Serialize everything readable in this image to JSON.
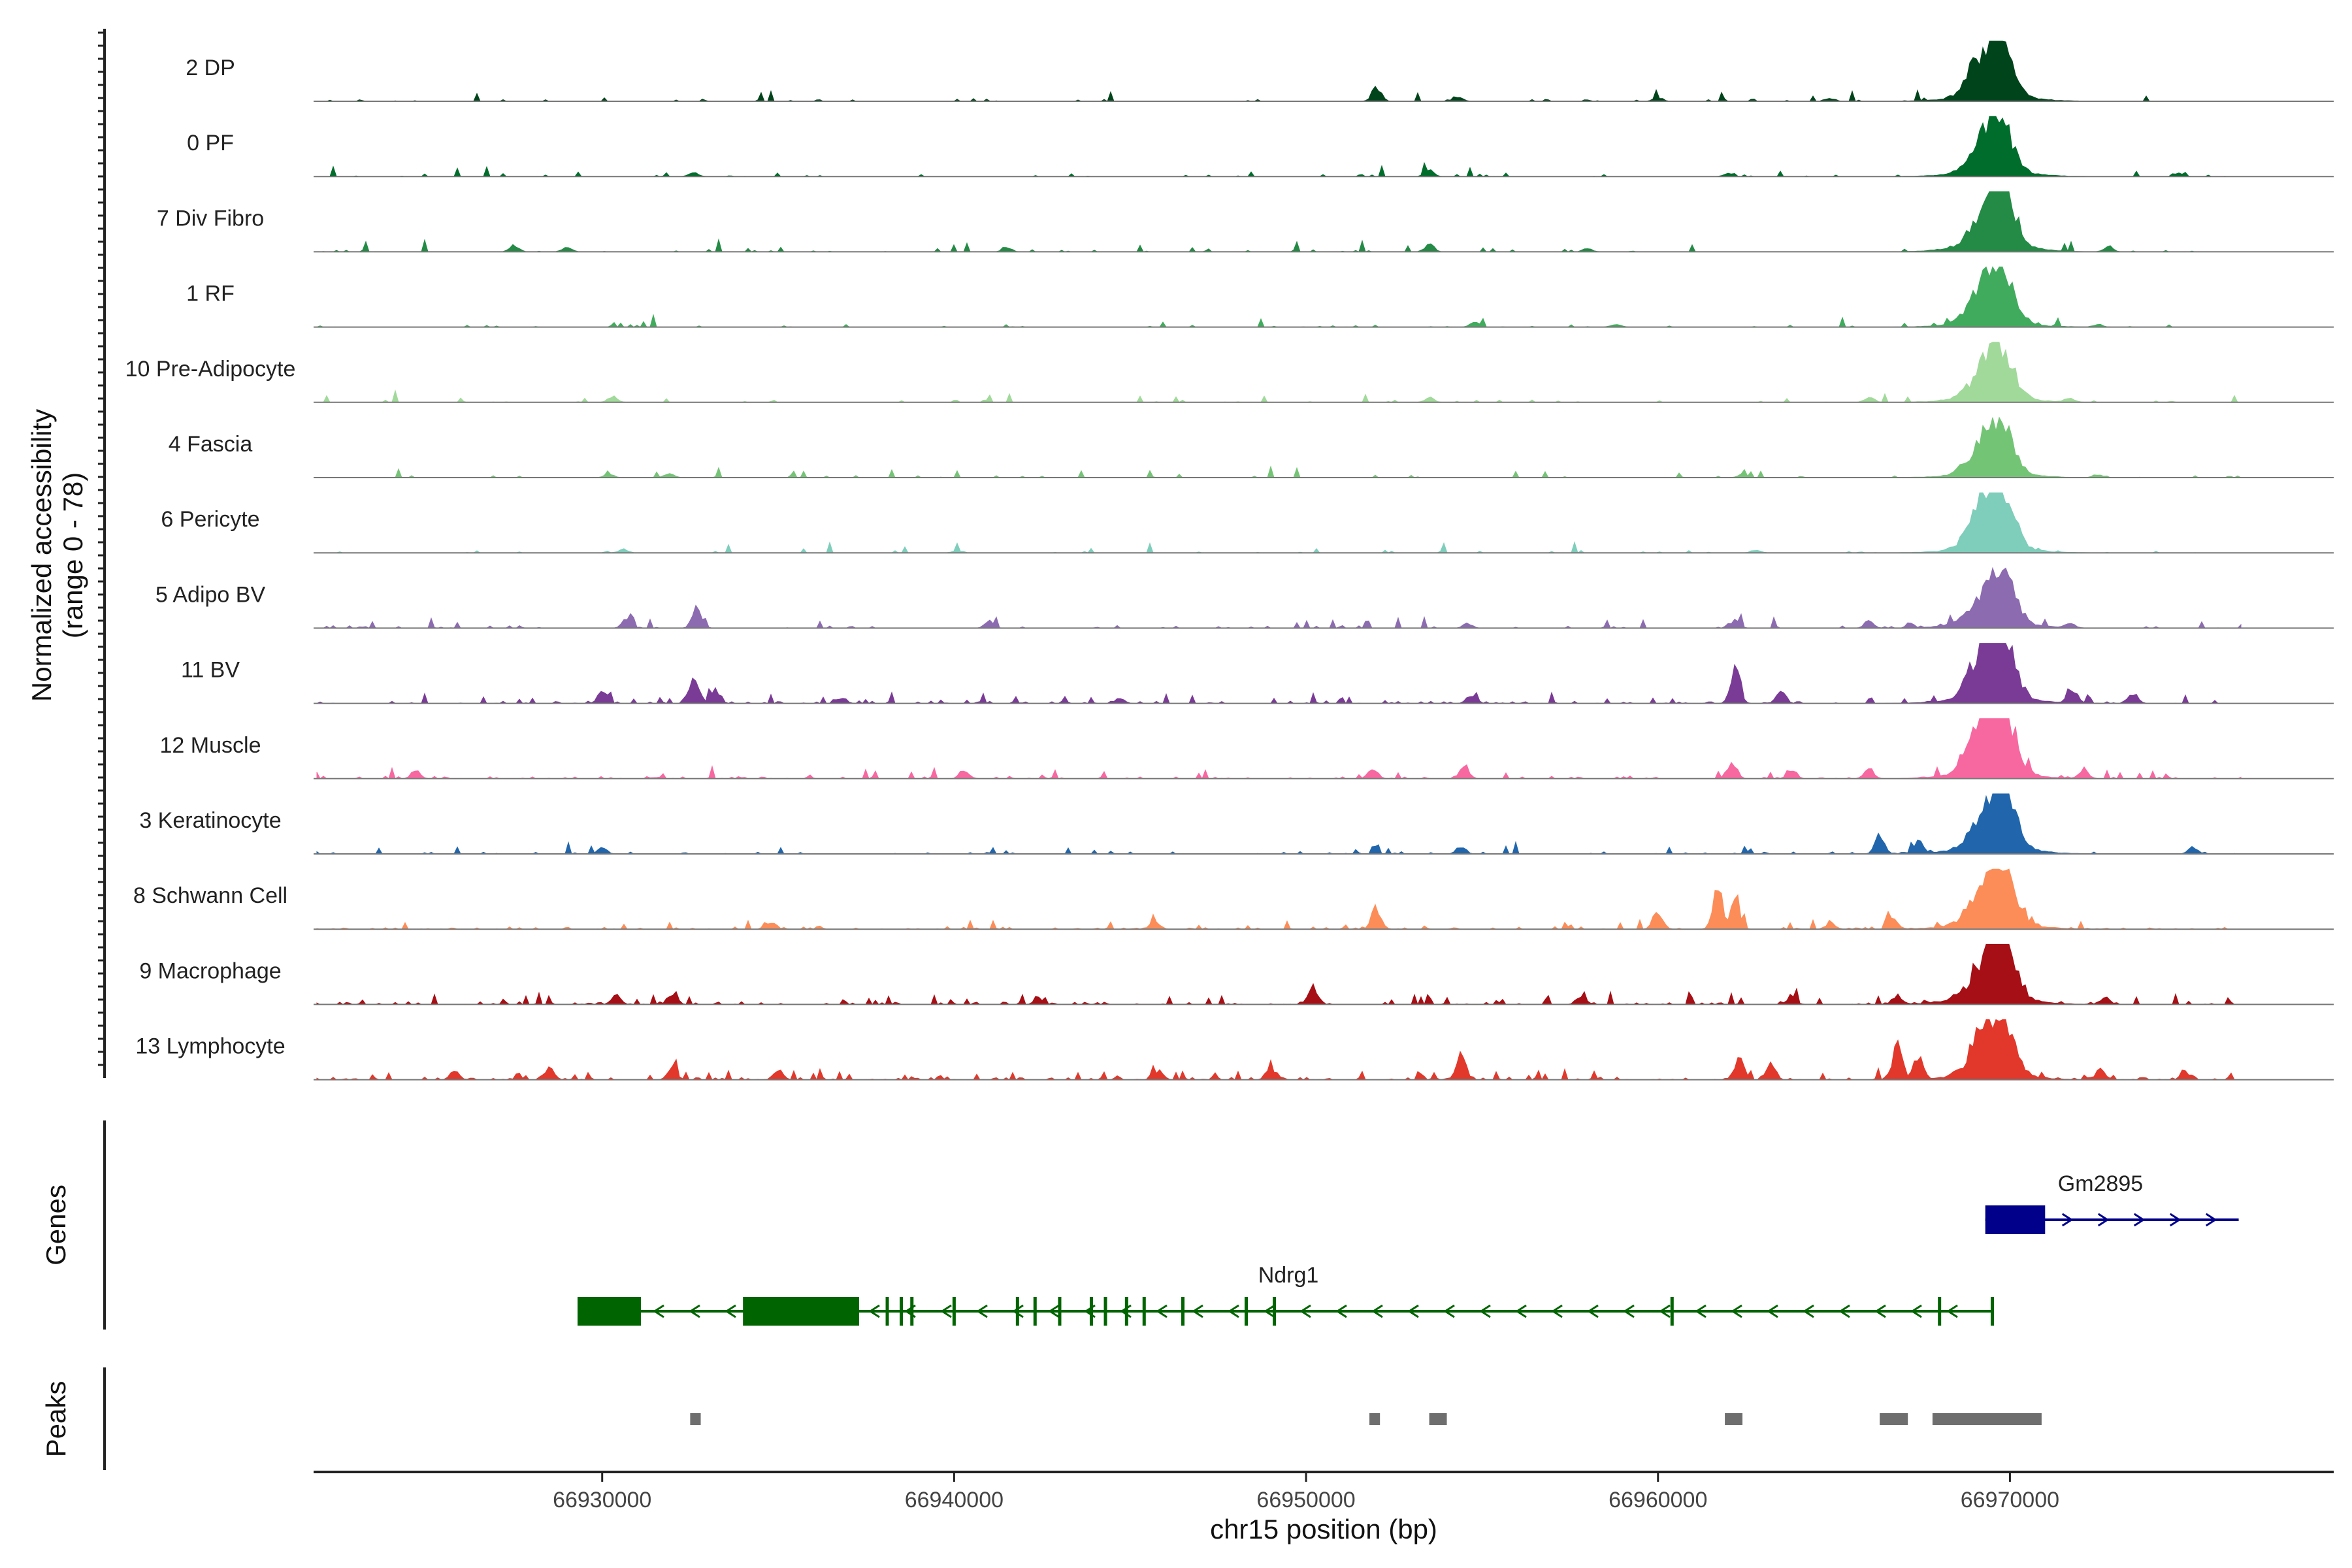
{
  "chart_data": {
    "type": "area",
    "title": "",
    "xlabel": "chr15 position (bp)",
    "ylabel": [
      "Normalized accessibility",
      "(range 0 - 78)"
    ],
    "ylim": [
      0,
      78
    ],
    "xlim": [
      66921800,
      66979200
    ],
    "x_ticks": [
      66930000,
      66940000,
      66950000,
      66960000,
      66970000
    ],
    "x_tick_labels": [
      "66930000",
      "66940000",
      "66950000",
      "66960000",
      "66970000"
    ],
    "panel_labels": {
      "genes": "Genes",
      "peaks": "Peaks"
    },
    "peak_positions": [
      66969300,
      66969800
    ],
    "tracks": [
      {
        "name": "2 DP",
        "color": "#00441b",
        "peak_heights": [
          55,
          43
        ],
        "minor_peaks": [
          [
            66952000,
            18
          ],
          [
            66954300,
            6
          ],
          [
            66960000,
            5
          ],
          [
            66964900,
            4
          ]
        ],
        "noise": 0.03
      },
      {
        "name": "0 PF",
        "color": "#006d2c",
        "peak_heights": [
          48,
          45
        ],
        "minor_peaks": [
          [
            66932600,
            5
          ],
          [
            66953500,
            8
          ],
          [
            66962000,
            4
          ],
          [
            66974800,
            4
          ]
        ],
        "noise": 0.03
      },
      {
        "name": "7 Div Fibro",
        "color": "#238b45",
        "peak_heights": [
          38,
          70
        ],
        "minor_peaks": [
          [
            66927500,
            8
          ],
          [
            66929000,
            6
          ],
          [
            66941500,
            5
          ],
          [
            66953500,
            9
          ],
          [
            66958000,
            4
          ],
          [
            66972800,
            7
          ]
        ],
        "noise": 0.05
      },
      {
        "name": "1 RF",
        "color": "#41ab5d",
        "peak_heights": [
          48,
          50
        ],
        "minor_peaks": [
          [
            66954800,
            6
          ],
          [
            66958800,
            4
          ],
          [
            66972500,
            3
          ]
        ],
        "noise": 0.03
      },
      {
        "name": "10 Pre-Adipocyte",
        "color": "#a1d99b",
        "peak_heights": [
          35,
          50
        ],
        "minor_peaks": [
          [
            66930300,
            8
          ],
          [
            66953500,
            6
          ],
          [
            66966000,
            7
          ],
          [
            66971700,
            5
          ]
        ],
        "noise": 0.04
      },
      {
        "name": "4 Fascia",
        "color": "#74c476",
        "peak_heights": [
          42,
          45
        ],
        "minor_peaks": [
          [
            66930200,
            5
          ],
          [
            66931900,
            6
          ],
          [
            66962400,
            4
          ],
          [
            66972500,
            4
          ]
        ],
        "noise": 0.03
      },
      {
        "name": "6 Pericyte",
        "color": "#7fcdbb",
        "peak_heights": [
          58,
          55
        ],
        "minor_peaks": [
          [
            66930600,
            5
          ],
          [
            66940100,
            3
          ],
          [
            66962800,
            4
          ]
        ],
        "noise": 0.03
      },
      {
        "name": "5 Adipo BV",
        "color": "#8c6bb1",
        "peak_heights": [
          30,
          65
        ],
        "minor_peaks": [
          [
            66930700,
            12
          ],
          [
            66932700,
            28
          ],
          [
            66941000,
            8
          ],
          [
            66954600,
            6
          ],
          [
            66962200,
            10
          ],
          [
            66966000,
            9
          ],
          [
            66971700,
            6
          ]
        ],
        "noise": 0.06
      },
      {
        "name": "11 BV",
        "color": "#7a3b96",
        "peak_heights": [
          60,
          65
        ],
        "minor_peaks": [
          [
            66930000,
            15
          ],
          [
            66932600,
            35
          ],
          [
            66933200,
            20
          ],
          [
            66936800,
            8
          ],
          [
            66944700,
            7
          ],
          [
            66954700,
            12
          ],
          [
            66962200,
            45
          ],
          [
            66963500,
            15
          ],
          [
            66971800,
            18
          ],
          [
            66973500,
            12
          ]
        ],
        "noise": 0.09
      },
      {
        "name": "12 Muscle",
        "color": "#f768a1",
        "peak_heights": [
          65,
          68
        ],
        "minor_peaks": [
          [
            66924700,
            10
          ],
          [
            66940300,
            12
          ],
          [
            66951900,
            15
          ],
          [
            66954500,
            17
          ],
          [
            66962100,
            22
          ],
          [
            66963800,
            12
          ],
          [
            66966000,
            14
          ],
          [
            66972100,
            10
          ]
        ],
        "noise": 0.08
      },
      {
        "name": "3 Keratinocyte",
        "color": "#2166ac",
        "peak_heights": [
          38,
          72
        ],
        "minor_peaks": [
          [
            66930000,
            8
          ],
          [
            66954400,
            10
          ],
          [
            66966300,
            25
          ],
          [
            66967400,
            15
          ],
          [
            66975200,
            8
          ]
        ],
        "noise": 0.05
      },
      {
        "name": "8 Schwann Cell",
        "color": "#fc8d59",
        "peak_heights": [
          45,
          70
        ],
        "minor_peaks": [
          [
            66934800,
            8
          ],
          [
            66945700,
            10
          ],
          [
            66952000,
            28
          ],
          [
            66960000,
            25
          ],
          [
            66961700,
            55
          ],
          [
            66962200,
            35
          ],
          [
            66964900,
            8
          ],
          [
            66966700,
            12
          ]
        ],
        "noise": 0.08
      },
      {
        "name": "9 Macrophage",
        "color": "#a50f15",
        "peak_heights": [
          38,
          78
        ],
        "minor_peaks": [
          [
            66930400,
            12
          ],
          [
            66932000,
            14
          ],
          [
            66942400,
            8
          ],
          [
            66950200,
            25
          ],
          [
            66957800,
            10
          ],
          [
            66963800,
            10
          ],
          [
            66966800,
            12
          ],
          [
            66972700,
            10
          ]
        ],
        "noise": 0.1
      },
      {
        "name": "13 Lymphocyte",
        "color": "#e2382b",
        "peak_heights": [
          48,
          52
        ],
        "minor_peaks": [
          [
            66925800,
            10
          ],
          [
            66928500,
            15
          ],
          [
            66932000,
            15
          ],
          [
            66935000,
            12
          ],
          [
            66945800,
            12
          ],
          [
            66949000,
            15
          ],
          [
            66954400,
            30
          ],
          [
            66962300,
            28
          ],
          [
            66963200,
            20
          ],
          [
            66966800,
            50
          ],
          [
            66967400,
            30
          ],
          [
            66972600,
            12
          ],
          [
            66975000,
            10
          ]
        ],
        "noise": 0.12
      }
    ],
    "genes": [
      {
        "name": "Ndrg1",
        "strand": "-",
        "color": "#006400",
        "start": 66929300,
        "end": 66969500,
        "thick_exons": [
          [
            66929300,
            66931100
          ],
          [
            66934000,
            66937300
          ]
        ],
        "exons": [
          66938100,
          66938500,
          66938800,
          66940000,
          66941800,
          66942300,
          66943000,
          66943900,
          66944300,
          66944900,
          66945400,
          66946500,
          66948300,
          66949100,
          66960400,
          66968000,
          66969500
        ]
      },
      {
        "name": "Gm2895",
        "strand": "+",
        "color": "#00008b",
        "start": 66969300,
        "end": 66976500,
        "thick_exons": [
          [
            66969300,
            66971000
          ]
        ],
        "exons": []
      }
    ],
    "peaks": [
      [
        66932500,
        66932800
      ],
      [
        66951800,
        66952100
      ],
      [
        66953500,
        66954000
      ],
      [
        66961900,
        66962400
      ],
      [
        66966300,
        66967100
      ],
      [
        66967800,
        66970900
      ]
    ]
  }
}
